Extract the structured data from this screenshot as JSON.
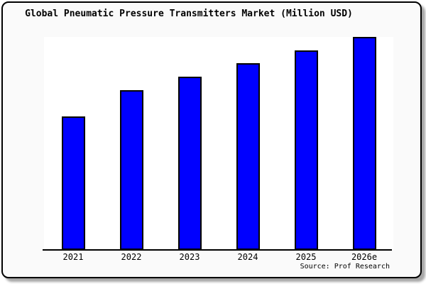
{
  "chart_data": {
    "type": "bar",
    "title": "Global Pneumatic Pressure Transmitters Market (Million USD)",
    "categories": [
      "2021",
      "2022",
      "2023",
      "2024",
      "2025",
      "2026e"
    ],
    "values": [
      62.7,
      75.0,
      81.3,
      87.7,
      93.7,
      100.0
    ],
    "values_unit": "percent of tallest bar (estimated; chart shows no y-axis scale)",
    "xlabel": "",
    "ylabel": "",
    "ylim": [
      0,
      100
    ],
    "grid": false,
    "legend": false,
    "source": "Source: Prof Research",
    "colors": {
      "bar_fill": "#0000ff",
      "bar_outline": "#000000",
      "figure_background": "#fafafa",
      "plot_background": "#ffffff",
      "frame_border": "#000000",
      "text": "#000000"
    }
  }
}
